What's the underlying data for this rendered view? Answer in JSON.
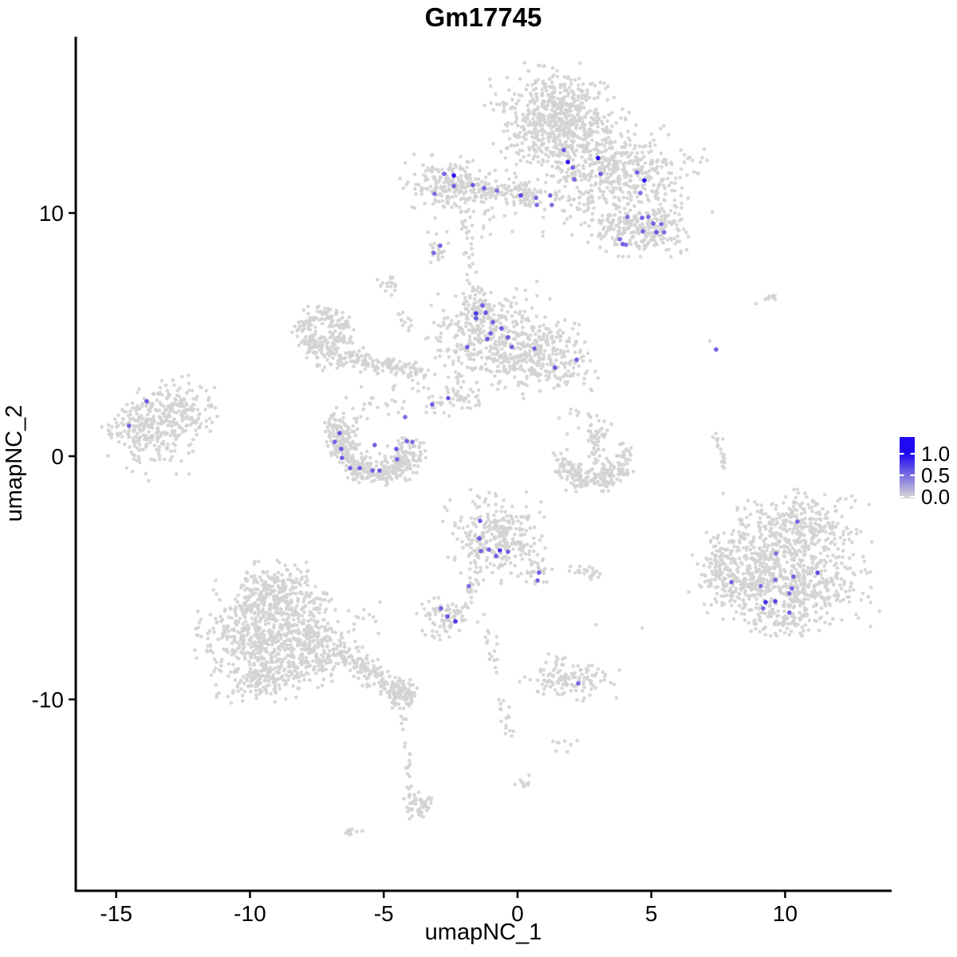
{
  "title": "Gm17745",
  "axes": {
    "xlabel": "umapNC_1",
    "ylabel": "umapNC_2",
    "x_ticks": [
      "-15",
      "-10",
      "-5",
      "0",
      "5",
      "10"
    ],
    "x_tick_values": [
      -15,
      -10,
      -5,
      0,
      5,
      10
    ],
    "y_ticks": [
      "10",
      "0",
      "-10"
    ],
    "y_tick_values": [
      10,
      0,
      -10
    ]
  },
  "legend": {
    "labels": [
      "1.0",
      "0.5",
      "0.0"
    ],
    "values": [
      1.0,
      0.5,
      0.0
    ],
    "color_low": "#D3D3D3",
    "color_high": "#2008F0"
  },
  "colors": {
    "background_cell": "#D3D3D3",
    "axis": "#000000"
  },
  "chart_data": {
    "type": "scatter",
    "title": "Gm17745",
    "xlabel": "umapNC_1",
    "ylabel": "umapNC_2",
    "x_range": [
      -16.48,
      13.95
    ],
    "y_range": [
      -17.87,
      17.25
    ],
    "grid": false,
    "legend_position": "right",
    "color_scale": {
      "low": 0.0,
      "high": 1.0
    },
    "background_clusters": {
      "blobs": [
        [
          1.37,
          14.16,
          1.01,
          0.85,
          420
        ],
        [
          1.82,
          13.11,
          1.13,
          0.79,
          300
        ],
        [
          4.2,
          11.38,
          1.25,
          0.85,
          320
        ],
        [
          3.31,
          12.03,
          0.55,
          0.6,
          70
        ],
        [
          -2.44,
          11.11,
          0.78,
          0.52,
          220
        ],
        [
          -0.72,
          10.85,
          0.95,
          0.22,
          100
        ],
        [
          0.24,
          10.72,
          0.35,
          0.25,
          40
        ],
        [
          3.99,
          9.21,
          0.6,
          0.5,
          130
        ],
        [
          5.28,
          9.31,
          0.5,
          0.45,
          110
        ],
        [
          -3.01,
          8.43,
          0.2,
          0.32,
          20
        ],
        [
          2.41,
          10.39,
          0.8,
          0.6,
          40
        ],
        [
          -1.16,
          9.67,
          1.1,
          0.4,
          20
        ],
        [
          9.18,
          6.49,
          0.42,
          0.12,
          10
        ],
        [
          -6.83,
          4.07,
          0.5,
          0.3,
          60
        ],
        [
          -1.07,
          4.89,
          0.95,
          0.95,
          380
        ],
        [
          -1.43,
          6.07,
          0.3,
          0.38,
          55
        ],
        [
          1.07,
          4.07,
          0.85,
          0.72,
          250
        ],
        [
          -2.21,
          2.46,
          0.4,
          0.35,
          42
        ],
        [
          -3.1,
          2.1,
          0.22,
          0.18,
          12
        ],
        [
          -3.85,
          2.52,
          0.5,
          0.3,
          14
        ],
        [
          -4.74,
          7.02,
          0.25,
          0.25,
          16
        ],
        [
          -13.83,
          1.05,
          0.75,
          0.8,
          240
        ],
        [
          -12.73,
          1.93,
          0.6,
          0.55,
          130
        ],
        [
          -11.74,
          2.1,
          0.5,
          0.55,
          16
        ],
        [
          -5.34,
          2.1,
          0.55,
          0.3,
          18
        ],
        [
          -0.86,
          -3.28,
          0.8,
          0.75,
          290
        ],
        [
          0.69,
          -4.72,
          0.28,
          0.3,
          32
        ],
        [
          2.56,
          -4.75,
          0.35,
          0.2,
          24
        ],
        [
          -2.65,
          -6.56,
          0.55,
          0.35,
          85
        ],
        [
          -3.01,
          -7.31,
          0.15,
          0.15,
          7
        ],
        [
          10.46,
          -2.82,
          1.15,
          0.6,
          250
        ],
        [
          9.72,
          -4.2,
          1.4,
          0.78,
          340
        ],
        [
          10.46,
          -5.57,
          1.2,
          0.72,
          300
        ],
        [
          8.53,
          -5.28,
          0.72,
          0.62,
          160
        ],
        [
          7.48,
          -4.59,
          0.32,
          0.5,
          45
        ],
        [
          9.87,
          -6.79,
          0.6,
          0.3,
          70
        ],
        [
          7.15,
          4.75,
          0.02,
          0.02,
          1
        ],
        [
          -9.06,
          -5.67,
          0.8,
          0.6,
          240
        ],
        [
          -9.51,
          -6.98,
          1.1,
          0.75,
          350
        ],
        [
          -8.91,
          -8.2,
          1.2,
          0.62,
          310
        ],
        [
          -9.87,
          -9.18,
          0.75,
          0.42,
          120
        ],
        [
          -7.42,
          -7.48,
          0.45,
          0.75,
          100
        ],
        [
          -4.29,
          -9.7,
          0.32,
          0.32,
          85
        ],
        [
          -3.7,
          -14.3,
          0.3,
          0.28,
          50
        ],
        [
          -6.23,
          -15.48,
          0.25,
          0.1,
          10
        ],
        [
          -6.14,
          -6.49,
          0.45,
          0.5,
          16
        ],
        [
          2.95,
          0.69,
          0.22,
          0.45,
          50
        ],
        [
          2.27,
          1.61,
          0.28,
          0.6,
          11
        ],
        [
          4.02,
          0.16,
          0.18,
          0.18,
          18
        ],
        [
          1.97,
          -9.15,
          0.75,
          0.35,
          120
        ],
        [
          1.52,
          -8.3,
          0.2,
          0.15,
          6
        ],
        [
          1.52,
          -11.84,
          0.28,
          0.15,
          8
        ],
        [
          0.27,
          -13.44,
          0.18,
          0.2,
          12
        ],
        [
          2.92,
          -6.92,
          0.02,
          0.02,
          1
        ],
        [
          4.65,
          -7.02,
          0.02,
          0.02,
          1
        ]
      ],
      "rings": [
        [
          -7.27,
          5.15,
          0.7,
          0.22,
          190
        ]
      ],
      "chains": [
        {
          "pts": [
            [
              -6.2,
              4.02
            ],
            [
              -4.8,
              3.72
            ],
            [
              -3.7,
              3.44
            ]
          ],
          "w": 0.18,
          "n": 110
        },
        {
          "pts": [
            [
              -1.97,
              9.41
            ],
            [
              -1.55,
              6.62
            ]
          ],
          "w": 0.14,
          "n": 26
        },
        {
          "pts": [
            [
              -4.35,
              5.9
            ],
            [
              -3.9,
              4.9
            ]
          ],
          "w": 0.12,
          "n": 12
        },
        {
          "pts": [
            [
              -6.68,
              1.48
            ],
            [
              -6.56,
              0.39
            ],
            [
              -5.99,
              -0.43
            ],
            [
              -5.1,
              -0.69
            ],
            [
              -4.29,
              -0.43
            ],
            [
              -3.88,
              0.56
            ]
          ],
          "w": 0.3,
          "n": 430
        },
        {
          "pts": [
            [
              -1.43,
              -4.66
            ],
            [
              -1.82,
              -5.67
            ]
          ],
          "w": 0.12,
          "n": 16
        },
        {
          "pts": [
            [
              7.39,
              0.98
            ],
            [
              7.72,
              -0.52
            ]
          ],
          "w": 0.1,
          "n": 18
        },
        {
          "pts": [
            [
              -6.8,
              -8.0
            ],
            [
              -5.6,
              -8.85
            ],
            [
              -4.35,
              -9.67
            ]
          ],
          "w": 0.25,
          "n": 150
        },
        {
          "pts": [
            [
              -4.35,
              -10.5
            ],
            [
              -3.95,
              -14.1
            ]
          ],
          "w": 0.08,
          "n": 20
        },
        {
          "pts": [
            [
              1.55,
              -0.2
            ],
            [
              2.27,
              -0.89
            ],
            [
              3.16,
              -0.95
            ],
            [
              3.99,
              -0.43
            ]
          ],
          "w": 0.26,
          "n": 200
        },
        {
          "pts": [
            [
              -1.1,
              -7.05
            ],
            [
              -0.72,
              -9.11
            ],
            [
              -0.33,
              -11.41
            ]
          ],
          "w": 0.12,
          "n": 32
        }
      ]
    },
    "expressing_cells": [
      [
        1.73,
        12.59,
        0.6
      ],
      [
        1.88,
        12.1,
        0.95
      ],
      [
        2.06,
        11.87,
        0.55
      ],
      [
        3.01,
        12.26,
        0.95
      ],
      [
        3.1,
        11.61,
        0.6
      ],
      [
        2.12,
        11.38,
        0.55
      ],
      [
        -2.74,
        11.61,
        0.55
      ],
      [
        -2.38,
        11.54,
        0.95
      ],
      [
        -2.38,
        11.11,
        0.55
      ],
      [
        -3.1,
        10.79,
        0.5
      ],
      [
        -1.67,
        11.15,
        0.6
      ],
      [
        -1.25,
        11.02,
        0.55
      ],
      [
        -0.77,
        10.92,
        0.5
      ],
      [
        0.12,
        10.72,
        0.7
      ],
      [
        0.69,
        10.62,
        0.5
      ],
      [
        0.72,
        10.33,
        0.5
      ],
      [
        1.22,
        10.72,
        0.55
      ],
      [
        1.28,
        10.33,
        0.5
      ],
      [
        4.47,
        11.67,
        0.55
      ],
      [
        4.74,
        11.34,
        0.95
      ],
      [
        4.59,
        10.82,
        0.5
      ],
      [
        4.11,
        9.84,
        0.5
      ],
      [
        4.65,
        9.8,
        0.55
      ],
      [
        4.89,
        9.84,
        0.5
      ],
      [
        5.07,
        9.57,
        0.55
      ],
      [
        5.37,
        9.54,
        0.5
      ],
      [
        4.68,
        9.25,
        0.55
      ],
      [
        5.19,
        9.21,
        0.6
      ],
      [
        5.48,
        9.21,
        0.5
      ],
      [
        3.82,
        8.92,
        0.5
      ],
      [
        3.93,
        8.72,
        0.55
      ],
      [
        4.05,
        8.69,
        0.5
      ],
      [
        -2.89,
        8.66,
        0.55
      ],
      [
        -3.13,
        8.36,
        0.5
      ],
      [
        -1.31,
        6.2,
        0.55
      ],
      [
        -1.55,
        5.87,
        0.8
      ],
      [
        -1.55,
        5.67,
        0.6
      ],
      [
        -1.19,
        5.9,
        0.6
      ],
      [
        -0.92,
        5.51,
        0.55
      ],
      [
        -0.6,
        5.25,
        0.6
      ],
      [
        -1.13,
        4.82,
        0.6
      ],
      [
        -1.01,
        5.05,
        0.55
      ],
      [
        -0.36,
        4.89,
        0.6
      ],
      [
        -0.21,
        4.49,
        0.55
      ],
      [
        -1.88,
        4.49,
        0.6
      ],
      [
        0.63,
        4.43,
        0.55
      ],
      [
        1.4,
        3.64,
        0.6
      ],
      [
        2.21,
        3.97,
        0.55
      ],
      [
        -2.59,
        2.39,
        0.6
      ],
      [
        -3.19,
        2.13,
        0.55
      ],
      [
        -6.65,
        0.95,
        0.6
      ],
      [
        -6.83,
        0.59,
        0.55
      ],
      [
        -6.59,
        0.3,
        0.6
      ],
      [
        -6.56,
        -0.07,
        0.6
      ],
      [
        -6.26,
        -0.49,
        0.55
      ],
      [
        -5.9,
        -0.49,
        0.6
      ],
      [
        -5.42,
        -0.59,
        0.55
      ],
      [
        -5.16,
        -0.59,
        0.6
      ],
      [
        -5.34,
        0.46,
        0.55
      ],
      [
        -4.53,
        0.3,
        0.6
      ],
      [
        -4.5,
        -0.13,
        0.55
      ],
      [
        -4.14,
        0.62,
        0.55
      ],
      [
        -3.93,
        0.59,
        0.5
      ],
      [
        -4.2,
        1.61,
        0.5
      ],
      [
        -13.86,
        2.26,
        0.6
      ],
      [
        -14.52,
        1.25,
        0.55
      ],
      [
        7.42,
        4.39,
        0.55
      ],
      [
        10.46,
        -2.69,
        0.55
      ],
      [
        9.66,
        -4,
        0.5
      ],
      [
        11.21,
        -4.79,
        0.65
      ],
      [
        10.31,
        -4.95,
        0.55
      ],
      [
        9.63,
        -5.08,
        0.5
      ],
      [
        7.99,
        -5.18,
        0.55
      ],
      [
        9.09,
        -5.34,
        0.5
      ],
      [
        10.25,
        -5.44,
        0.55
      ],
      [
        10.16,
        -5.64,
        0.5
      ],
      [
        9.27,
        -6,
        0.8
      ],
      [
        9.63,
        -5.97,
        0.7
      ],
      [
        9.18,
        -6.26,
        0.5
      ],
      [
        10.16,
        -6.43,
        0.55
      ],
      [
        -1.4,
        -2.66,
        0.6
      ],
      [
        -1.43,
        -3.38,
        0.6
      ],
      [
        -1.37,
        -3.9,
        0.55
      ],
      [
        -1.07,
        -3.84,
        0.55
      ],
      [
        -0.66,
        -3.87,
        0.75
      ],
      [
        -0.36,
        -3.93,
        0.55
      ],
      [
        -0.8,
        -4.1,
        0.55
      ],
      [
        0.8,
        -4.79,
        0.55
      ],
      [
        0.75,
        -5.11,
        0.55
      ],
      [
        -1.82,
        -5.34,
        0.5
      ],
      [
        -2.86,
        -6.26,
        0.55
      ],
      [
        -2.62,
        -6.59,
        0.6
      ],
      [
        -2.32,
        -6.79,
        0.75
      ],
      [
        2.27,
        -9.34,
        0.55
      ]
    ]
  }
}
